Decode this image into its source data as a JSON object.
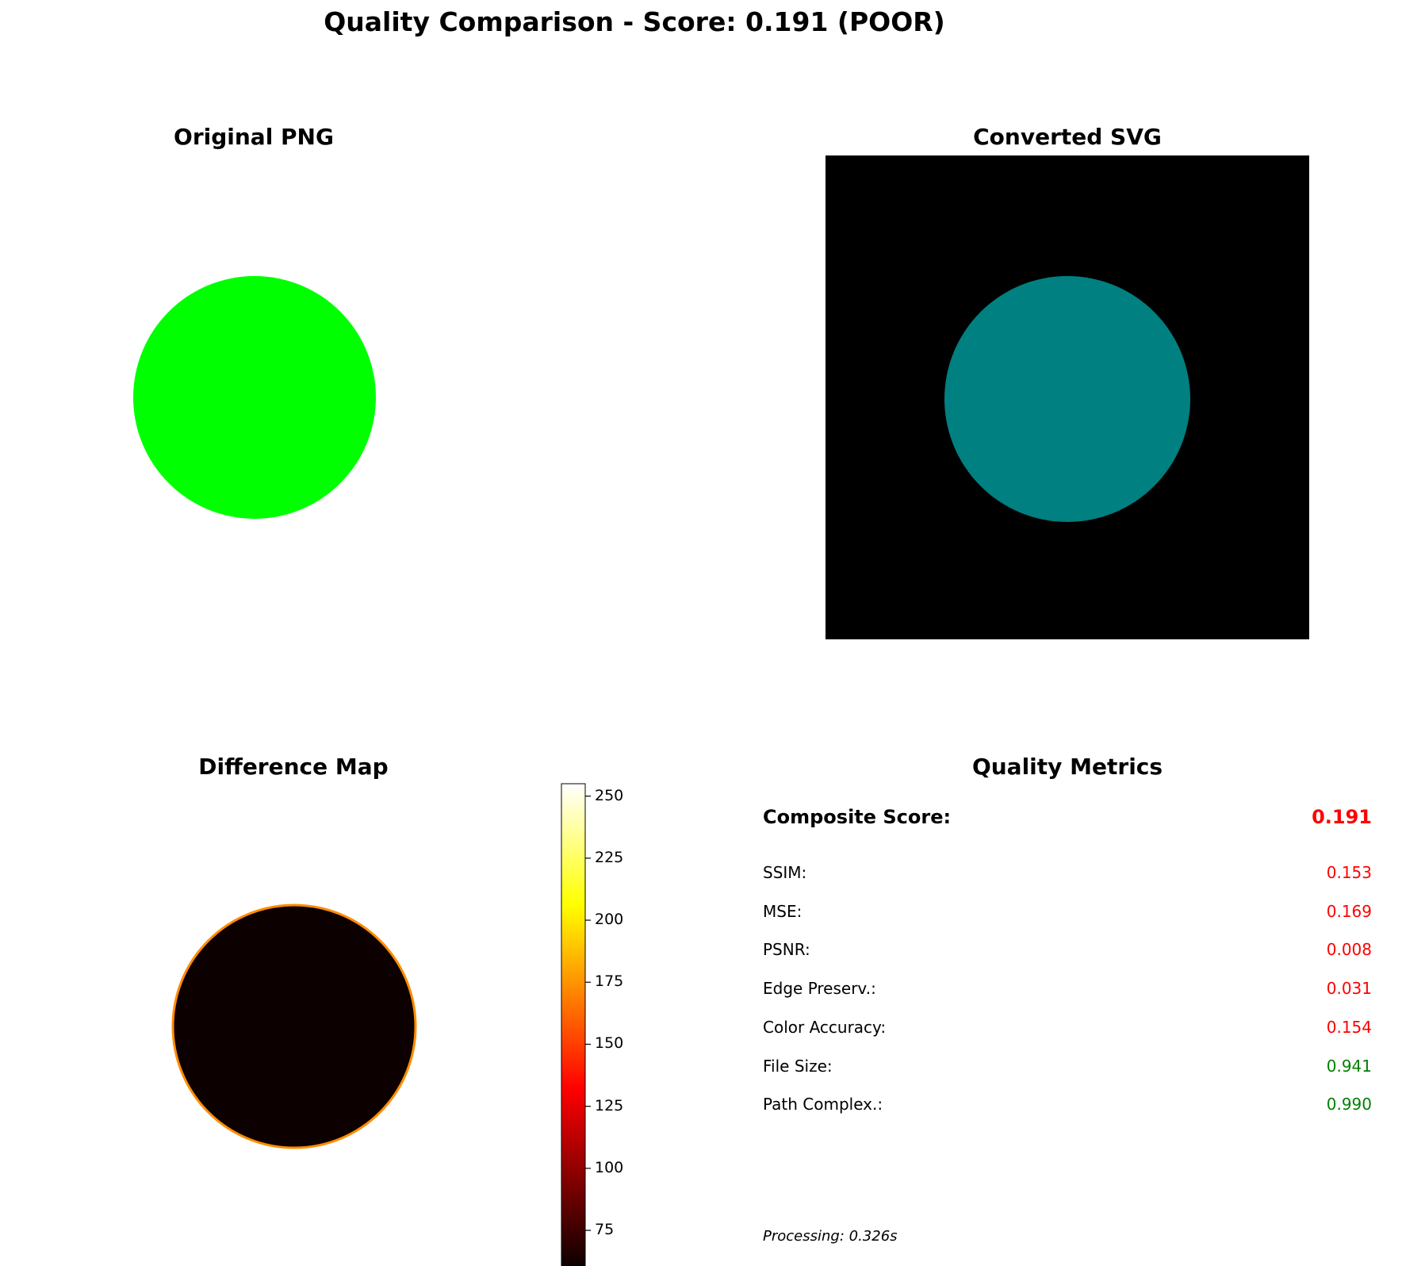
{
  "figure": {
    "title": "Quality Comparison - Score: 0.191 (POOR)"
  },
  "chart_data": [
    {
      "type": "image",
      "title": "Original PNG",
      "content": "green circle on white background",
      "colors": {
        "background": "#ffffff",
        "circle": "#00ff00"
      }
    },
    {
      "type": "image",
      "title": "Converted SVG",
      "content": "teal circle on black background",
      "colors": {
        "background": "#000000",
        "circle": "#008080"
      }
    },
    {
      "type": "heatmap",
      "title": "Difference Map",
      "colormap": "hot",
      "colorbar": {
        "range": [
          60,
          255
        ],
        "ticks": [
          75,
          100,
          125,
          150,
          175,
          200,
          225,
          250
        ]
      },
      "colors": {
        "background": "#ffffff",
        "inner": "#0d0000",
        "edge": "#ff8c00"
      }
    },
    {
      "type": "table",
      "title": "Quality Metrics",
      "composite": {
        "label": "Composite Score:",
        "value": "0.191",
        "color": "#ff0000"
      },
      "metrics": [
        {
          "label": "SSIM:",
          "value": "0.153",
          "color": "#ff0000"
        },
        {
          "label": "MSE:",
          "value": "0.169",
          "color": "#ff0000"
        },
        {
          "label": "PSNR:",
          "value": "0.008",
          "color": "#ff0000"
        },
        {
          "label": "Edge Preserv.:",
          "value": "0.031",
          "color": "#ff0000"
        },
        {
          "label": "Color Accuracy:",
          "value": "0.154",
          "color": "#ff0000"
        },
        {
          "label": "File Size:",
          "value": "0.941",
          "color": "#008000"
        },
        {
          "label": "Path Complex.:",
          "value": "0.990",
          "color": "#008000"
        }
      ],
      "processing": "Processing: 0.326s"
    }
  ]
}
